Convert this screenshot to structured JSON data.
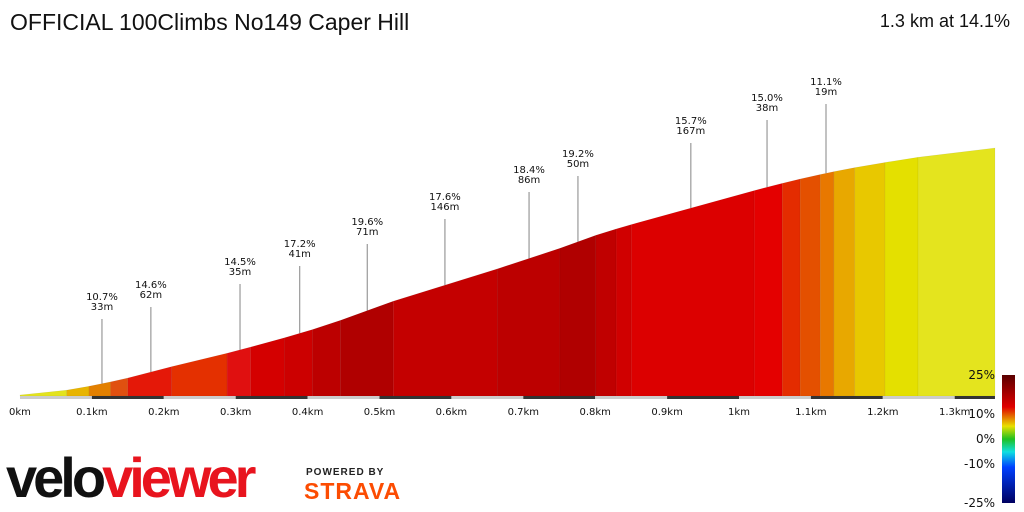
{
  "header": {
    "title": "OFFICIAL 100Climbs No149 Caper Hill",
    "summary": "1.3 km at 14.1%"
  },
  "chart_data": {
    "type": "area",
    "x_ticks": [
      "0km",
      "0.1km",
      "0.2km",
      "0.3km",
      "0.4km",
      "0.5km",
      "0.6km",
      "0.7km",
      "0.8km",
      "0.9km",
      "1km",
      "1.1km",
      "1.2km",
      "1.3km"
    ],
    "x_tick_values": [
      0,
      0.1,
      0.2,
      0.3,
      0.4,
      0.5,
      0.6,
      0.7,
      0.8,
      0.9,
      1.0,
      1.1,
      1.2,
      1.3
    ],
    "xlim": [
      0,
      1.356
    ],
    "boundaries_km": [
      0,
      0.065,
      0.096,
      0.126,
      0.15,
      0.211,
      0.288,
      0.321,
      0.368,
      0.407,
      0.446,
      0.519,
      0.664,
      0.751,
      0.801,
      0.829,
      0.85,
      1.021,
      1.06,
      1.085,
      1.113,
      1.132,
      1.161,
      1.203,
      1.249,
      1.356
    ],
    "segment_grades": [
      6,
      10,
      12,
      13,
      15,
      14,
      15,
      16,
      17,
      19,
      21,
      18,
      19,
      21,
      18,
      17,
      16,
      15,
      14,
      13,
      12,
      11,
      10,
      9,
      7
    ],
    "segment_colors": [
      "#e3e31e",
      "#e8b400",
      "#e38000",
      "#e05010",
      "#e41808",
      "#e43000",
      "#e01010",
      "#d40000",
      "#cc0000",
      "#bc0000",
      "#b00000",
      "#c40000",
      "#bc0000",
      "#b00000",
      "#c00000",
      "#d00000",
      "#dc0000",
      "#e40000",
      "#e42c00",
      "#e45000",
      "#e87800",
      "#e8a800",
      "#e8c800",
      "#e4e000",
      "#e4e41e"
    ],
    "annotations": [
      {
        "km": 0.114,
        "grade": "10.7%",
        "length": "33m"
      },
      {
        "km": 0.182,
        "grade": "14.6%",
        "length": "62m"
      },
      {
        "km": 0.306,
        "grade": "14.5%",
        "length": "35m"
      },
      {
        "km": 0.389,
        "grade": "17.2%",
        "length": "41m"
      },
      {
        "km": 0.483,
        "grade": "19.6%",
        "length": "71m"
      },
      {
        "km": 0.591,
        "grade": "17.6%",
        "length": "146m"
      },
      {
        "km": 0.708,
        "grade": "18.4%",
        "length": "86m"
      },
      {
        "km": 0.776,
        "grade": "19.2%",
        "length": "50m"
      },
      {
        "km": 0.933,
        "grade": "15.7%",
        "length": "167m"
      },
      {
        "km": 1.039,
        "grade": "15.0%",
        "length": "38m"
      },
      {
        "km": 1.121,
        "grade": "11.1%",
        "length": "19m"
      }
    ],
    "legend": {
      "labels": [
        "25%",
        "10%",
        "0%",
        "-10%",
        "-25%"
      ],
      "colors": [
        "#5a0000",
        "#e00000",
        "#e8e000",
        "#20c020",
        "#10e0e0",
        "#0040ff",
        "#000060"
      ]
    }
  },
  "logo": {
    "velo": "velo",
    "viewer": "viewer",
    "powered_by": "POWERED BY",
    "strava": "STRAVA"
  }
}
